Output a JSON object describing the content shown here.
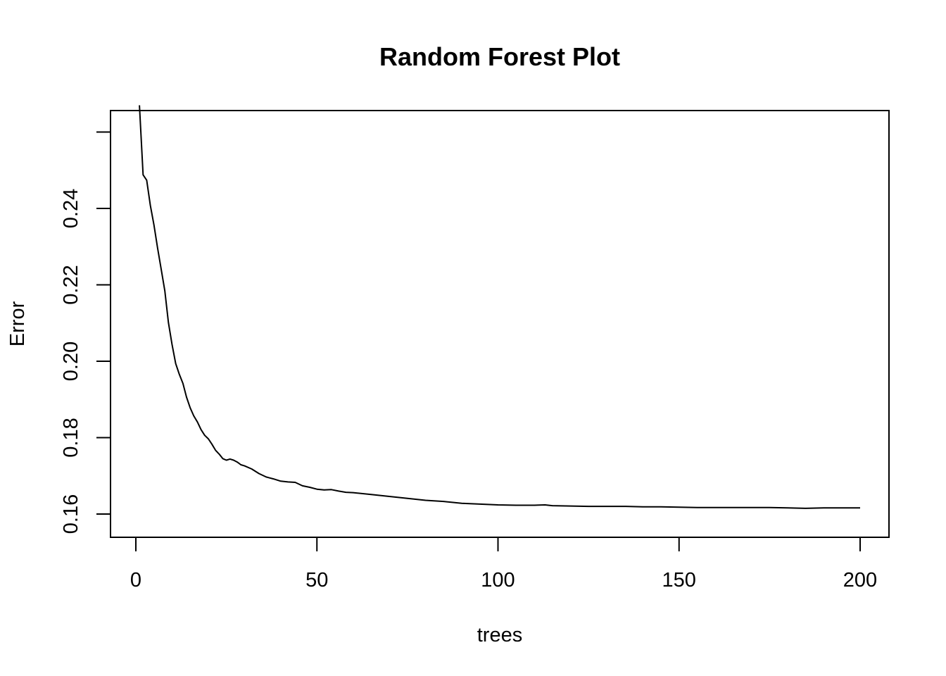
{
  "chart_data": {
    "type": "line",
    "title": "Random Forest Plot",
    "xlabel": "trees",
    "ylabel": "Error",
    "xlim": [
      1,
      200
    ],
    "ylim": [
      0.1587,
      0.2548
    ],
    "x_ticks": [
      0,
      50,
      100,
      150,
      200
    ],
    "x_tick_labels": [
      "0",
      "50",
      "100",
      "150",
      "200"
    ],
    "y_ticks": [
      0.16,
      0.18,
      0.2,
      0.22,
      0.24
    ],
    "y_tick_labels": [
      "0.16",
      "0.18",
      "0.20",
      "0.22",
      "0.24"
    ],
    "y_extra_ticks": [
      0.26
    ],
    "grid": false,
    "legend": "none",
    "line_color": "#000000",
    "series": [
      {
        "x": [
          1,
          2,
          3,
          4,
          5,
          6,
          7,
          8,
          9,
          10,
          11,
          12,
          13,
          14,
          15,
          16,
          17,
          18,
          19,
          20,
          21,
          22,
          23,
          24,
          25,
          26,
          27,
          28,
          29,
          30,
          32,
          34,
          36,
          38,
          40,
          42,
          44,
          46,
          48,
          50,
          52,
          54,
          56,
          58,
          60,
          65,
          70,
          75,
          80,
          85,
          90,
          95,
          100,
          105,
          110,
          113,
          115,
          120,
          125,
          130,
          135,
          140,
          145,
          150,
          155,
          160,
          165,
          170,
          175,
          180,
          185,
          190,
          195,
          200
        ],
        "values": [
          0.267,
          0.2488,
          0.2474,
          0.2408,
          0.2357,
          0.2296,
          0.2241,
          0.2184,
          0.2101,
          0.2044,
          0.1994,
          0.1966,
          0.1942,
          0.1906,
          0.1878,
          0.1857,
          0.1841,
          0.1821,
          0.1806,
          0.1797,
          0.1783,
          0.1767,
          0.1757,
          0.1745,
          0.1741,
          0.1744,
          0.1741,
          0.1736,
          0.1729,
          0.1726,
          0.1718,
          0.1706,
          0.1697,
          0.1692,
          0.1686,
          0.1684,
          0.1683,
          0.1674,
          0.167,
          0.1665,
          0.1663,
          0.1664,
          0.166,
          0.1657,
          0.1656,
          0.1651,
          0.1646,
          0.1641,
          0.1636,
          0.1633,
          0.1628,
          0.1626,
          0.1624,
          0.1623,
          0.1623,
          0.1624,
          0.1622,
          0.1621,
          0.162,
          0.162,
          0.162,
          0.1619,
          0.1619,
          0.1618,
          0.1617,
          0.1617,
          0.1617,
          0.1617,
          0.1617,
          0.1616,
          0.1615,
          0.1616,
          0.1616,
          0.1616
        ]
      }
    ]
  }
}
